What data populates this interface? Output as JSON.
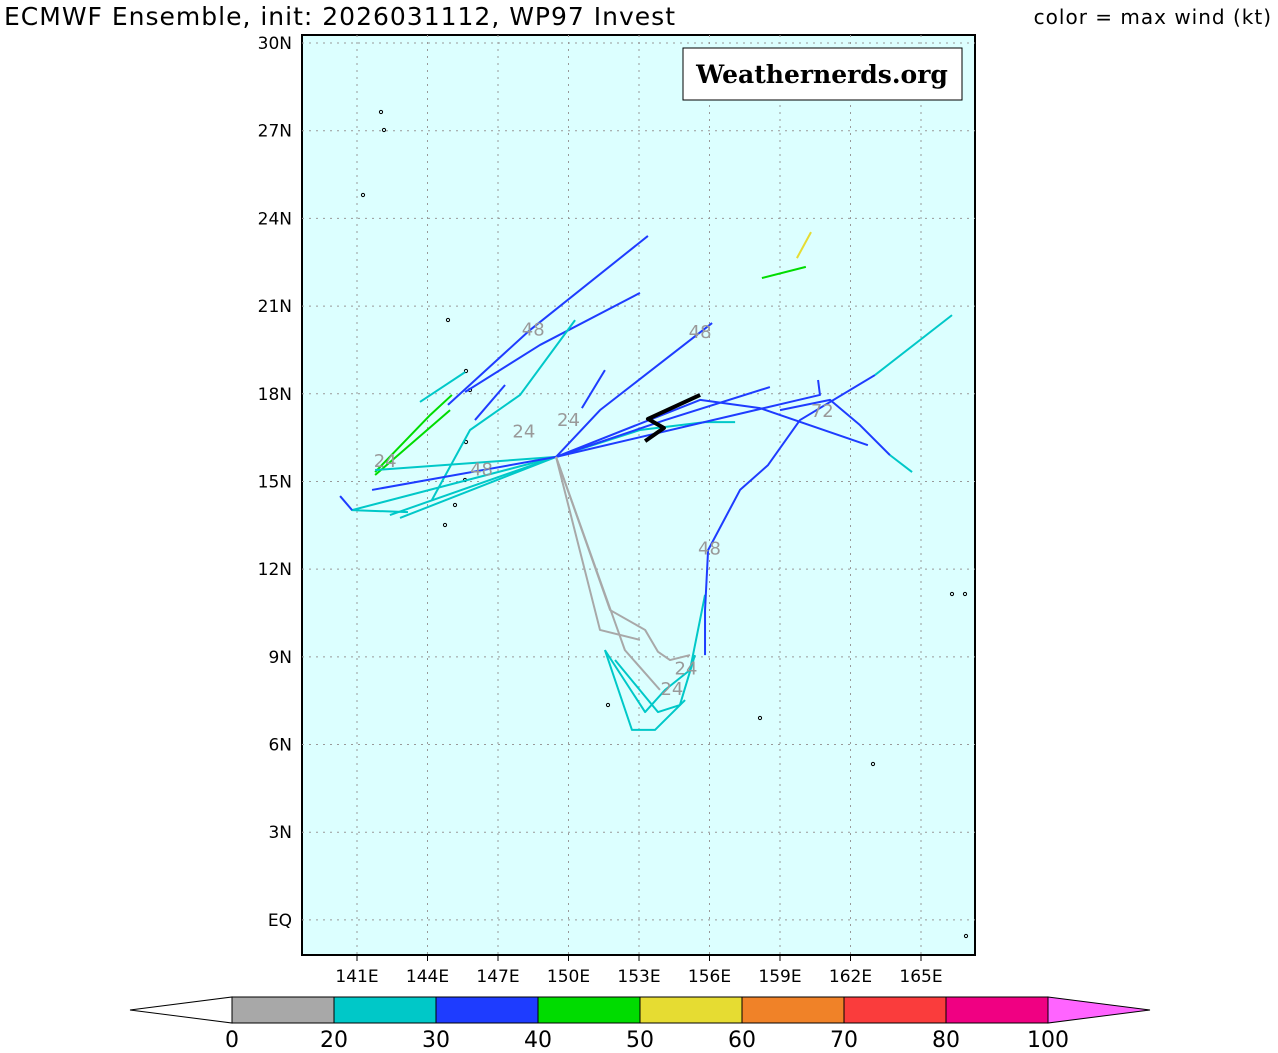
{
  "title": "ECMWF Ensemble, init: 2026031112, WP97 Invest",
  "color_note": "color = max wind (kt)",
  "watermark": "Weathernerds.org",
  "chart_data": {
    "type": "map-tracks",
    "lon_range": [
      138.7,
      167.3
    ],
    "lat_range": [
      -1.2,
      30.3
    ],
    "lon_ticks": [
      "141E",
      "144E",
      "147E",
      "150E",
      "153E",
      "156E",
      "159E",
      "162E",
      "165E"
    ],
    "lon_tick_values": [
      141,
      144,
      147,
      150,
      153,
      156,
      159,
      162,
      165
    ],
    "lat_ticks": [
      "30N",
      "27N",
      "24N",
      "21N",
      "18N",
      "15N",
      "12N",
      "9N",
      "6N",
      "3N",
      "EQ"
    ],
    "lat_tick_values": [
      30,
      27,
      24,
      21,
      18,
      15,
      12,
      9,
      6,
      3,
      0
    ],
    "colors": {
      "gray": "#a8a8a8",
      "teal": "#00c8c8",
      "blue": "#1e3cff",
      "green": "#00dc00",
      "yellow": "#e6dc32",
      "black": "#000000"
    },
    "tracks": [
      {
        "c": "blue",
        "pts": [
          [
            144.87,
            17.62
          ],
          [
            148.36,
            20.18
          ],
          [
            153.38,
            23.4
          ]
        ]
      },
      {
        "c": "blue",
        "pts": [
          [
            145.6,
            18.06
          ],
          [
            148.79,
            19.67
          ],
          [
            153.04,
            21.45
          ]
        ]
      },
      {
        "c": "teal",
        "pts": [
          [
            143.68,
            17.72
          ],
          [
            145.6,
            18.74
          ]
        ]
      },
      {
        "c": "green",
        "pts": [
          [
            141.77,
            15.32
          ],
          [
            144.11,
            17.27
          ],
          [
            145.04,
            17.96
          ]
        ]
      },
      {
        "c": "green",
        "pts": [
          [
            141.77,
            15.22
          ],
          [
            144.96,
            17.44
          ]
        ]
      },
      {
        "c": "teal",
        "pts": [
          [
            144.19,
            14.37
          ],
          [
            145.81,
            16.76
          ],
          [
            147.94,
            17.96
          ],
          [
            150.28,
            20.52
          ]
        ]
      },
      {
        "c": "teal",
        "pts": [
          [
            149.47,
            15.84
          ],
          [
            141.77,
            15.39
          ]
        ]
      },
      {
        "c": "teal",
        "pts": [
          [
            149.47,
            15.84
          ],
          [
            140.79,
            14.02
          ],
          [
            143.17,
            13.95
          ]
        ]
      },
      {
        "c": "teal",
        "pts": [
          [
            149.47,
            15.84
          ],
          [
            142.4,
            13.85
          ]
        ]
      },
      {
        "c": "teal",
        "pts": [
          [
            149.47,
            15.84
          ],
          [
            142.83,
            13.75
          ]
        ]
      },
      {
        "c": "teal",
        "pts": [
          [
            149.47,
            15.84
          ],
          [
            153.04,
            16.76
          ],
          [
            155.81,
            17.03
          ],
          [
            157.09,
            17.03
          ]
        ]
      },
      {
        "c": "blue",
        "pts": [
          [
            149.47,
            15.84
          ],
          [
            141.64,
            14.71
          ]
        ]
      },
      {
        "c": "blue",
        "pts": [
          [
            140.28,
            14.5
          ],
          [
            140.79,
            14.02
          ]
        ]
      },
      {
        "c": "blue",
        "pts": [
          [
            149.47,
            15.84
          ],
          [
            151.34,
            17.44
          ],
          [
            156.11,
            20.42
          ]
        ]
      },
      {
        "c": "blue",
        "pts": [
          [
            149.47,
            15.84
          ],
          [
            154.11,
            17.1
          ],
          [
            158.57,
            18.23
          ]
        ]
      },
      {
        "c": "blue",
        "pts": [
          [
            149.47,
            15.84
          ],
          [
            155.6,
            17.79
          ],
          [
            158.15,
            17.51
          ]
        ]
      },
      {
        "c": "blue",
        "pts": [
          [
            149.47,
            15.84
          ],
          [
            159.43,
            17.72
          ],
          [
            160.7,
            17.96
          ],
          [
            160.62,
            18.47
          ]
        ]
      },
      {
        "c": "blue",
        "pts": [
          [
            150.57,
            17.51
          ],
          [
            151.55,
            18.81
          ]
        ]
      },
      {
        "c": "blue",
        "pts": [
          [
            146.02,
            17.1
          ],
          [
            147.3,
            18.3
          ]
        ]
      },
      {
        "c": "gray",
        "pts": [
          [
            149.47,
            15.84
          ],
          [
            151.77,
            10.6
          ],
          [
            153.26,
            9.92
          ],
          [
            153.81,
            9.17
          ],
          [
            154.32,
            8.89
          ],
          [
            155.17,
            9.06
          ]
        ]
      },
      {
        "c": "gray",
        "pts": [
          [
            149.47,
            15.84
          ],
          [
            152.4,
            9.23
          ],
          [
            153.89,
            7.87
          ]
        ]
      },
      {
        "c": "gray",
        "pts": [
          [
            149.47,
            15.84
          ],
          [
            151.34,
            9.92
          ],
          [
            153.04,
            9.58
          ]
        ]
      },
      {
        "c": "teal",
        "pts": [
          [
            151.55,
            9.23
          ],
          [
            152.7,
            6.5
          ],
          [
            153.68,
            6.5
          ],
          [
            154.96,
            7.52
          ]
        ]
      },
      {
        "c": "teal",
        "pts": [
          [
            151.55,
            9.23
          ],
          [
            153.26,
            7.11
          ],
          [
            154.11,
            7.87
          ],
          [
            155.17,
            8.55
          ],
          [
            155.81,
            11.12
          ]
        ]
      },
      {
        "c": "teal",
        "pts": [
          [
            151.98,
            8.89
          ],
          [
            153.81,
            7.11
          ],
          [
            154.74,
            7.35
          ],
          [
            155.38,
            9.06
          ]
        ]
      },
      {
        "c": "blue",
        "pts": [
          [
            155.81,
            9.06
          ],
          [
            155.81,
            10.6
          ],
          [
            155.94,
            12.65
          ],
          [
            157.3,
            14.71
          ],
          [
            158.49,
            15.56
          ],
          [
            159.85,
            17.1
          ],
          [
            163.04,
            18.64
          ]
        ]
      },
      {
        "c": "teal",
        "pts": [
          [
            163.04,
            18.64
          ],
          [
            166.32,
            20.69
          ]
        ]
      },
      {
        "c": "blue",
        "pts": [
          [
            159.0,
            17.44
          ],
          [
            161.13,
            17.79
          ],
          [
            162.4,
            16.93
          ],
          [
            163.68,
            15.9
          ]
        ]
      },
      {
        "c": "teal",
        "pts": [
          [
            163.68,
            15.9
          ],
          [
            164.62,
            15.32
          ]
        ]
      },
      {
        "c": "blue",
        "pts": [
          [
            158.15,
            17.51
          ],
          [
            162.74,
            16.24
          ]
        ]
      },
      {
        "c": "green",
        "pts": [
          [
            158.23,
            21.96
          ],
          [
            160.1,
            22.34
          ]
        ]
      },
      {
        "c": "yellow",
        "pts": [
          [
            159.72,
            22.64
          ],
          [
            160.32,
            23.53
          ]
        ]
      },
      {
        "c": "black",
        "w": 4,
        "pts": [
          [
            153.26,
            16.38
          ],
          [
            154.06,
            16.83
          ],
          [
            153.38,
            17.14
          ],
          [
            155.6,
            17.96
          ]
        ]
      }
    ],
    "hour_labels": [
      {
        "t": "24",
        "lon": 142.2,
        "lat": 15.5
      },
      {
        "t": "48",
        "lon": 148.5,
        "lat": 20.0
      },
      {
        "t": "48",
        "lon": 146.3,
        "lat": 15.2
      },
      {
        "t": "24",
        "lon": 148.1,
        "lat": 16.5
      },
      {
        "t": "24",
        "lon": 150.0,
        "lat": 16.9
      },
      {
        "t": "48",
        "lon": 155.6,
        "lat": 19.9
      },
      {
        "t": "72",
        "lon": 160.8,
        "lat": 17.2
      },
      {
        "t": "48",
        "lon": 156.0,
        "lat": 12.5
      },
      {
        "t": "24",
        "lon": 155.0,
        "lat": 8.4
      },
      {
        "t": "24",
        "lon": 154.4,
        "lat": 7.7
      }
    ],
    "colorbar": {
      "labels": [
        "0",
        "20",
        "30",
        "40",
        "50",
        "60",
        "70",
        "80",
        "100"
      ],
      "bins": [
        "#a8a8a8",
        "#00c8c8",
        "#1e3cff",
        "#00dc00",
        "#e6dc32",
        "#f08228",
        "#fa3c3c",
        "#f00082"
      ],
      "over": "#ff64ff"
    }
  }
}
